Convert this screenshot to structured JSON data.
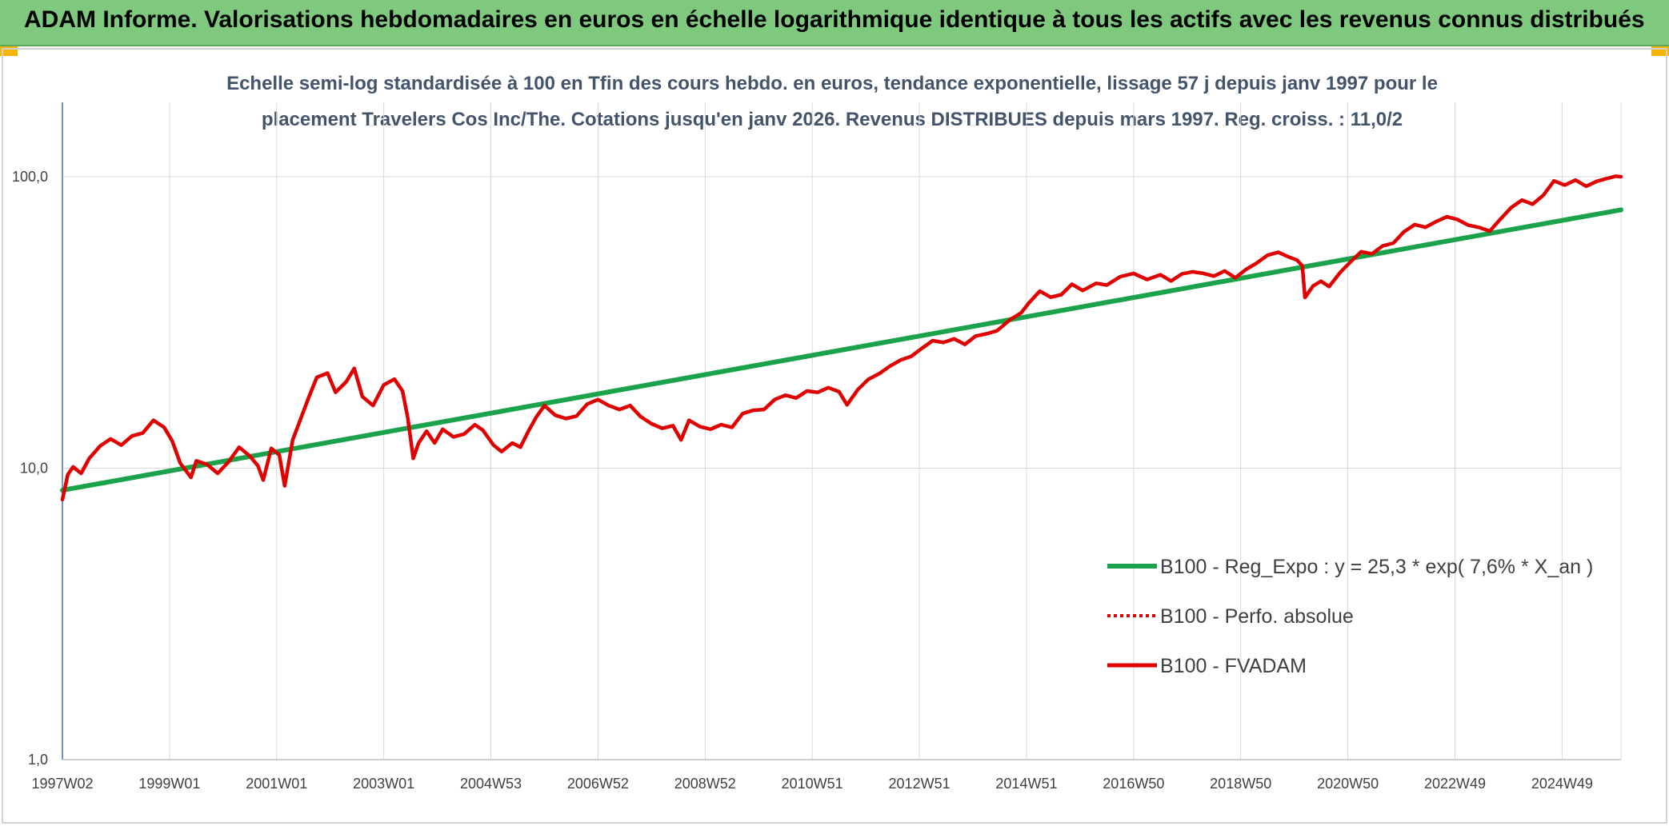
{
  "header": {
    "title": "ADAM Informe. Valorisations hebdomadaires en euros en échelle logarithmique identique à tous les actifs avec les revenus connus distribués"
  },
  "chart_data": {
    "type": "line",
    "subtitle_lines": [
      "Echelle semi-log standardisée à 100 en Tfin des cours hebdo. en euros, tendance exponentielle, lissage 57 j depuis janv 1997 pour le",
      "placement Travelers Cos Inc/The. Cotations jusqu'en janv 2026. Revenus DISTRIBUES depuis mars 1997. Reg. croiss. : 11,0/2"
    ],
    "y_scale": "log",
    "ylim": [
      1,
      180
    ],
    "y_ticks": [
      {
        "value": 1,
        "label": "1,0"
      },
      {
        "value": 10,
        "label": "10,0"
      },
      {
        "value": 100,
        "label": "100,0"
      }
    ],
    "xlim": [
      1997.0,
      2026.1
    ],
    "x_ticks": [
      {
        "x": 1997.0,
        "label": "1997W02"
      },
      {
        "x": 1999.0,
        "label": "1999W01"
      },
      {
        "x": 2001.0,
        "label": "2001W01"
      },
      {
        "x": 2003.0,
        "label": "2003W01"
      },
      {
        "x": 2005.0,
        "label": "2004W53"
      },
      {
        "x": 2007.0,
        "label": "2006W52"
      },
      {
        "x": 2009.0,
        "label": "2008W52"
      },
      {
        "x": 2011.0,
        "label": "2010W51"
      },
      {
        "x": 2013.0,
        "label": "2012W51"
      },
      {
        "x": 2015.0,
        "label": "2014W51"
      },
      {
        "x": 2017.0,
        "label": "2016W50"
      },
      {
        "x": 2019.0,
        "label": "2018W50"
      },
      {
        "x": 2021.0,
        "label": "2020W50"
      },
      {
        "x": 2023.0,
        "label": "2022W49"
      },
      {
        "x": 2025.0,
        "label": "2024W49"
      }
    ],
    "grid": true,
    "legend_position": "right",
    "series": [
      {
        "name": "B100 - Reg_Expo : y = 25,3 * exp( 7,6% *  X_an )",
        "color": "#1aa34a",
        "style": "solid",
        "points": [
          [
            1997.0,
            8.4
          ],
          [
            2026.1,
            77
          ]
        ]
      },
      {
        "name": "B100 - Perfo. absolue",
        "color": "#e00000",
        "style": "dotted",
        "points": []
      },
      {
        "name": "B100 - FVADAM",
        "color": "#e00000",
        "style": "solid",
        "points": [
          [
            1997.0,
            7.8
          ],
          [
            1997.1,
            9.5
          ],
          [
            1997.2,
            10.1
          ],
          [
            1997.35,
            9.6
          ],
          [
            1997.5,
            10.8
          ],
          [
            1997.7,
            11.9
          ],
          [
            1997.9,
            12.6
          ],
          [
            1998.1,
            12.0
          ],
          [
            1998.3,
            12.9
          ],
          [
            1998.5,
            13.2
          ],
          [
            1998.7,
            14.6
          ],
          [
            1998.9,
            13.8
          ],
          [
            1999.05,
            12.4
          ],
          [
            1999.2,
            10.4
          ],
          [
            1999.4,
            9.3
          ],
          [
            1999.5,
            10.6
          ],
          [
            1999.7,
            10.3
          ],
          [
            1999.9,
            9.6
          ],
          [
            2000.1,
            10.5
          ],
          [
            2000.3,
            11.8
          ],
          [
            2000.5,
            11.0
          ],
          [
            2000.65,
            10.2
          ],
          [
            2000.75,
            9.1
          ],
          [
            2000.9,
            11.7
          ],
          [
            2001.05,
            11.1
          ],
          [
            2001.15,
            8.7
          ],
          [
            2001.3,
            12.5
          ],
          [
            2001.45,
            14.8
          ],
          [
            2001.6,
            17.5
          ],
          [
            2001.75,
            20.5
          ],
          [
            2001.95,
            21.2
          ],
          [
            2002.1,
            18.2
          ],
          [
            2002.3,
            19.8
          ],
          [
            2002.45,
            22.0
          ],
          [
            2002.6,
            17.6
          ],
          [
            2002.8,
            16.4
          ],
          [
            2003.0,
            19.3
          ],
          [
            2003.2,
            20.2
          ],
          [
            2003.35,
            18.4
          ],
          [
            2003.45,
            14.8
          ],
          [
            2003.55,
            10.8
          ],
          [
            2003.65,
            12.2
          ],
          [
            2003.8,
            13.4
          ],
          [
            2003.95,
            12.2
          ],
          [
            2004.1,
            13.6
          ],
          [
            2004.3,
            12.8
          ],
          [
            2004.5,
            13.1
          ],
          [
            2004.7,
            14.1
          ],
          [
            2004.85,
            13.5
          ],
          [
            2005.05,
            12.0
          ],
          [
            2005.2,
            11.4
          ],
          [
            2005.4,
            12.2
          ],
          [
            2005.55,
            11.8
          ],
          [
            2005.7,
            13.4
          ],
          [
            2005.85,
            15.0
          ],
          [
            2006.0,
            16.4
          ],
          [
            2006.2,
            15.2
          ],
          [
            2006.4,
            14.8
          ],
          [
            2006.6,
            15.1
          ],
          [
            2006.8,
            16.6
          ],
          [
            2007.0,
            17.2
          ],
          [
            2007.2,
            16.4
          ],
          [
            2007.4,
            15.9
          ],
          [
            2007.6,
            16.4
          ],
          [
            2007.8,
            15.0
          ],
          [
            2008.0,
            14.2
          ],
          [
            2008.2,
            13.7
          ],
          [
            2008.4,
            14.0
          ],
          [
            2008.55,
            12.5
          ],
          [
            2008.7,
            14.6
          ],
          [
            2008.9,
            13.9
          ],
          [
            2009.1,
            13.6
          ],
          [
            2009.3,
            14.1
          ],
          [
            2009.5,
            13.8
          ],
          [
            2009.7,
            15.4
          ],
          [
            2009.9,
            15.8
          ],
          [
            2010.1,
            15.9
          ],
          [
            2010.3,
            17.2
          ],
          [
            2010.5,
            17.8
          ],
          [
            2010.7,
            17.4
          ],
          [
            2010.9,
            18.4
          ],
          [
            2011.1,
            18.2
          ],
          [
            2011.3,
            18.9
          ],
          [
            2011.5,
            18.3
          ],
          [
            2011.65,
            16.5
          ],
          [
            2011.85,
            18.6
          ],
          [
            2012.05,
            20.2
          ],
          [
            2012.25,
            21.1
          ],
          [
            2012.45,
            22.4
          ],
          [
            2012.65,
            23.5
          ],
          [
            2012.85,
            24.2
          ],
          [
            2013.05,
            25.8
          ],
          [
            2013.25,
            27.4
          ],
          [
            2013.45,
            27.0
          ],
          [
            2013.65,
            27.8
          ],
          [
            2013.85,
            26.6
          ],
          [
            2014.05,
            28.4
          ],
          [
            2014.25,
            28.9
          ],
          [
            2014.45,
            29.6
          ],
          [
            2014.7,
            32.4
          ],
          [
            2014.9,
            34.1
          ],
          [
            2015.05,
            37.0
          ],
          [
            2015.25,
            40.5
          ],
          [
            2015.45,
            38.6
          ],
          [
            2015.65,
            39.4
          ],
          [
            2015.85,
            42.8
          ],
          [
            2016.05,
            40.7
          ],
          [
            2016.3,
            43.1
          ],
          [
            2016.5,
            42.5
          ],
          [
            2016.75,
            45.4
          ],
          [
            2017.0,
            46.6
          ],
          [
            2017.25,
            44.4
          ],
          [
            2017.5,
            46.1
          ],
          [
            2017.7,
            43.9
          ],
          [
            2017.9,
            46.4
          ],
          [
            2018.1,
            47.2
          ],
          [
            2018.3,
            46.6
          ],
          [
            2018.5,
            45.6
          ],
          [
            2018.7,
            47.5
          ],
          [
            2018.9,
            45.0
          ],
          [
            2019.1,
            48.1
          ],
          [
            2019.3,
            50.6
          ],
          [
            2019.5,
            53.8
          ],
          [
            2019.7,
            55.1
          ],
          [
            2019.9,
            53.0
          ],
          [
            2020.05,
            51.8
          ],
          [
            2020.15,
            49.5
          ],
          [
            2020.2,
            38.5
          ],
          [
            2020.35,
            42.2
          ],
          [
            2020.5,
            43.8
          ],
          [
            2020.65,
            42.0
          ],
          [
            2020.85,
            46.8
          ],
          [
            2021.05,
            51.0
          ],
          [
            2021.25,
            55.3
          ],
          [
            2021.45,
            54.4
          ],
          [
            2021.65,
            57.9
          ],
          [
            2021.85,
            59.2
          ],
          [
            2022.05,
            64.8
          ],
          [
            2022.25,
            68.5
          ],
          [
            2022.45,
            67.1
          ],
          [
            2022.65,
            70.2
          ],
          [
            2022.85,
            72.9
          ],
          [
            2023.05,
            71.3
          ],
          [
            2023.25,
            68.2
          ],
          [
            2023.45,
            67.0
          ],
          [
            2023.65,
            65.1
          ],
          [
            2023.85,
            71.6
          ],
          [
            2024.05,
            78.4
          ],
          [
            2024.25,
            83.2
          ],
          [
            2024.45,
            80.5
          ],
          [
            2024.65,
            86.4
          ],
          [
            2024.85,
            96.8
          ],
          [
            2025.05,
            93.6
          ],
          [
            2025.25,
            97.4
          ],
          [
            2025.45,
            92.8
          ],
          [
            2025.65,
            96.5
          ],
          [
            2025.85,
            98.8
          ],
          [
            2026.0,
            100.4
          ],
          [
            2026.1,
            100.0
          ]
        ]
      }
    ]
  }
}
